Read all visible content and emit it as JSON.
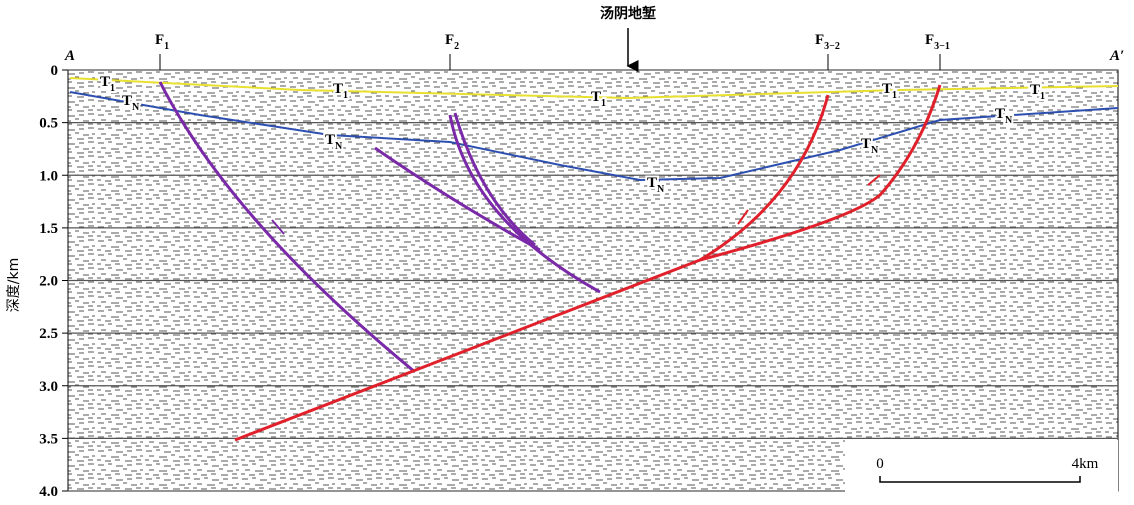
{
  "title": "汤阴地堑",
  "axis": {
    "label": "深度/km",
    "ticks": [
      0,
      0.5,
      {
        "value": 1,
        "label": "1.0"
      },
      1.5,
      {
        "value": 2,
        "label": "2.0"
      },
      2.5,
      {
        "value": 3,
        "label": "3.0"
      },
      3.5,
      {
        "value": 4,
        "label": "4.0"
      }
    ],
    "range": [
      0,
      4
    ]
  },
  "section_ends": [
    "A",
    "A′"
  ],
  "faults": [
    {
      "main": "F",
      "sub": "1"
    },
    {
      "main": "F",
      "sub": "2"
    },
    {
      "main": "F",
      "sub": "3−2"
    },
    {
      "main": "F",
      "sub": "3−1"
    }
  ],
  "horizon_labels": [
    {
      "main": "T",
      "sub": "1"
    },
    {
      "main": "T",
      "sub": "1"
    },
    {
      "main": "T",
      "sub": "1"
    },
    {
      "main": "T",
      "sub": "1"
    },
    {
      "main": "T",
      "sub": "1"
    },
    {
      "main": "T",
      "sub": "N"
    },
    {
      "main": "T",
      "sub": "N"
    },
    {
      "main": "T",
      "sub": "N"
    },
    {
      "main": "T",
      "sub": "N"
    },
    {
      "main": "T",
      "sub": "N"
    }
  ],
  "scale_bar": {
    "start": "0",
    "end": "4km"
  }
}
